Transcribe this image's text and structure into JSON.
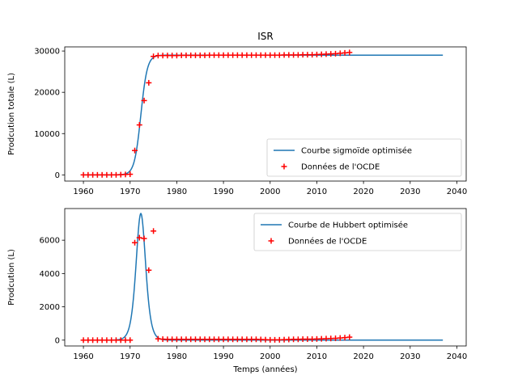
{
  "chart_data": [
    {
      "type": "line",
      "title": "ISR",
      "xlabel": "",
      "ylabel": "Prodcution totale (L)",
      "xlim": [
        1956,
        2042
      ],
      "ylim": [
        -1500,
        31000
      ],
      "xticks": [
        1960,
        1970,
        1980,
        1990,
        2000,
        2010,
        2020,
        2030,
        2040
      ],
      "yticks": [
        0,
        10000,
        20000,
        30000
      ],
      "legend_position": "lower-right",
      "grid": false,
      "series": [
        {
          "name": "Courbe sigmoïde optimisée",
          "kind": "line",
          "color": "#1f77b4",
          "model": "sigmoid",
          "params": {
            "L": 29000,
            "x0": 1972.3,
            "k": 1.45
          },
          "x_range": [
            1960,
            2037
          ]
        },
        {
          "name": "Données de l'OCDE",
          "kind": "scatter",
          "marker": "plus",
          "color": "#ff0000",
          "x": [
            1960,
            1961,
            1962,
            1963,
            1964,
            1965,
            1966,
            1967,
            1968,
            1969,
            1970,
            1971,
            1972,
            1973,
            1974,
            1975,
            1976,
            1977,
            1978,
            1979,
            1980,
            1981,
            1982,
            1983,
            1984,
            1985,
            1986,
            1987,
            1988,
            1989,
            1990,
            1991,
            1992,
            1993,
            1994,
            1995,
            1996,
            1997,
            1998,
            1999,
            2000,
            2001,
            2002,
            2003,
            2004,
            2005,
            2006,
            2007,
            2008,
            2009,
            2010,
            2011,
            2012,
            2013,
            2014,
            2015,
            2016,
            2017
          ],
          "y": [
            0,
            0,
            0,
            0,
            0,
            0,
            0,
            0,
            50,
            100,
            150,
            5900,
            12100,
            18000,
            22300,
            28700,
            28900,
            28900,
            28900,
            28900,
            28900,
            28950,
            28950,
            28950,
            28950,
            28950,
            28950,
            29000,
            29000,
            29000,
            29000,
            29000,
            29000,
            29000,
            29000,
            29000,
            29000,
            29000,
            29000,
            29000,
            29000,
            29000,
            29000,
            29050,
            29050,
            29050,
            29050,
            29100,
            29100,
            29100,
            29150,
            29200,
            29250,
            29300,
            29350,
            29450,
            29550,
            29650
          ]
        }
      ]
    },
    {
      "type": "line",
      "title": "",
      "xlabel": "Temps (années)",
      "ylabel": "Prodcution (L)",
      "xlim": [
        1956,
        2042
      ],
      "ylim": [
        -350,
        7900
      ],
      "xticks": [
        1960,
        1970,
        1980,
        1990,
        2000,
        2010,
        2020,
        2030,
        2040
      ],
      "yticks": [
        0,
        2000,
        4000,
        6000
      ],
      "legend_position": "upper-right",
      "grid": false,
      "series": [
        {
          "name": "Courbe de Hubbert optimisée",
          "kind": "line",
          "color": "#1f77b4",
          "model": "hubbert",
          "params": {
            "peak": 7600,
            "x0": 1972.3,
            "k": 1.45
          },
          "x_range": [
            1960,
            2037
          ]
        },
        {
          "name": "Données de l'OCDE",
          "kind": "scatter",
          "marker": "plus",
          "color": "#ff0000",
          "x": [
            1960,
            1961,
            1962,
            1963,
            1964,
            1965,
            1966,
            1967,
            1968,
            1969,
            1970,
            1971,
            1972,
            1973,
            1974,
            1975,
            1976,
            1977,
            1978,
            1979,
            1980,
            1981,
            1982,
            1983,
            1984,
            1985,
            1986,
            1987,
            1988,
            1989,
            1990,
            1991,
            1992,
            1993,
            1994,
            1995,
            1996,
            1997,
            1998,
            1999,
            2000,
            2001,
            2002,
            2003,
            2004,
            2005,
            2006,
            2007,
            2008,
            2009,
            2010,
            2011,
            2012,
            2013,
            2014,
            2015,
            2016,
            2017
          ],
          "y": [
            0,
            0,
            0,
            0,
            0,
            0,
            0,
            0,
            0,
            0,
            0,
            5850,
            6150,
            6100,
            4200,
            6550,
            80,
            60,
            50,
            50,
            50,
            50,
            50,
            50,
            50,
            50,
            50,
            50,
            50,
            50,
            50,
            50,
            50,
            50,
            50,
            50,
            50,
            50,
            40,
            30,
            20,
            20,
            20,
            30,
            40,
            50,
            50,
            60,
            60,
            60,
            70,
            80,
            90,
            100,
            110,
            130,
            150,
            180
          ]
        }
      ]
    }
  ]
}
